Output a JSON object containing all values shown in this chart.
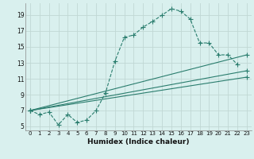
{
  "xlabel": "Humidex (Indice chaleur)",
  "bg_color": "#d9f0ee",
  "grid_color": "#c0d8d4",
  "line_color": "#2a7d6e",
  "xlim": [
    -0.5,
    23.5
  ],
  "ylim": [
    4.5,
    20.5
  ],
  "yticks": [
    5,
    7,
    9,
    11,
    13,
    15,
    17,
    19
  ],
  "xticks": [
    0,
    1,
    2,
    3,
    4,
    5,
    6,
    7,
    8,
    9,
    10,
    11,
    12,
    13,
    14,
    15,
    16,
    17,
    18,
    19,
    20,
    21,
    22,
    23
  ],
  "series1_x": [
    0,
    1,
    2,
    3,
    4,
    5,
    6,
    7,
    8,
    9,
    10,
    11,
    12,
    13,
    14,
    15,
    16,
    17,
    18,
    19,
    20,
    21,
    22
  ],
  "series1_y": [
    7.0,
    6.5,
    6.8,
    5.2,
    6.5,
    5.5,
    5.8,
    7.0,
    9.2,
    13.2,
    16.2,
    16.5,
    17.5,
    18.2,
    19.0,
    19.8,
    19.5,
    18.5,
    15.5,
    15.5,
    14.0,
    14.0,
    12.8
  ],
  "series2_x": [
    0,
    23
  ],
  "series2_y": [
    7.0,
    14.0
  ],
  "series3_x": [
    0,
    23
  ],
  "series3_y": [
    7.0,
    12.0
  ],
  "series4_x": [
    0,
    23
  ],
  "series4_y": [
    7.0,
    11.2
  ]
}
